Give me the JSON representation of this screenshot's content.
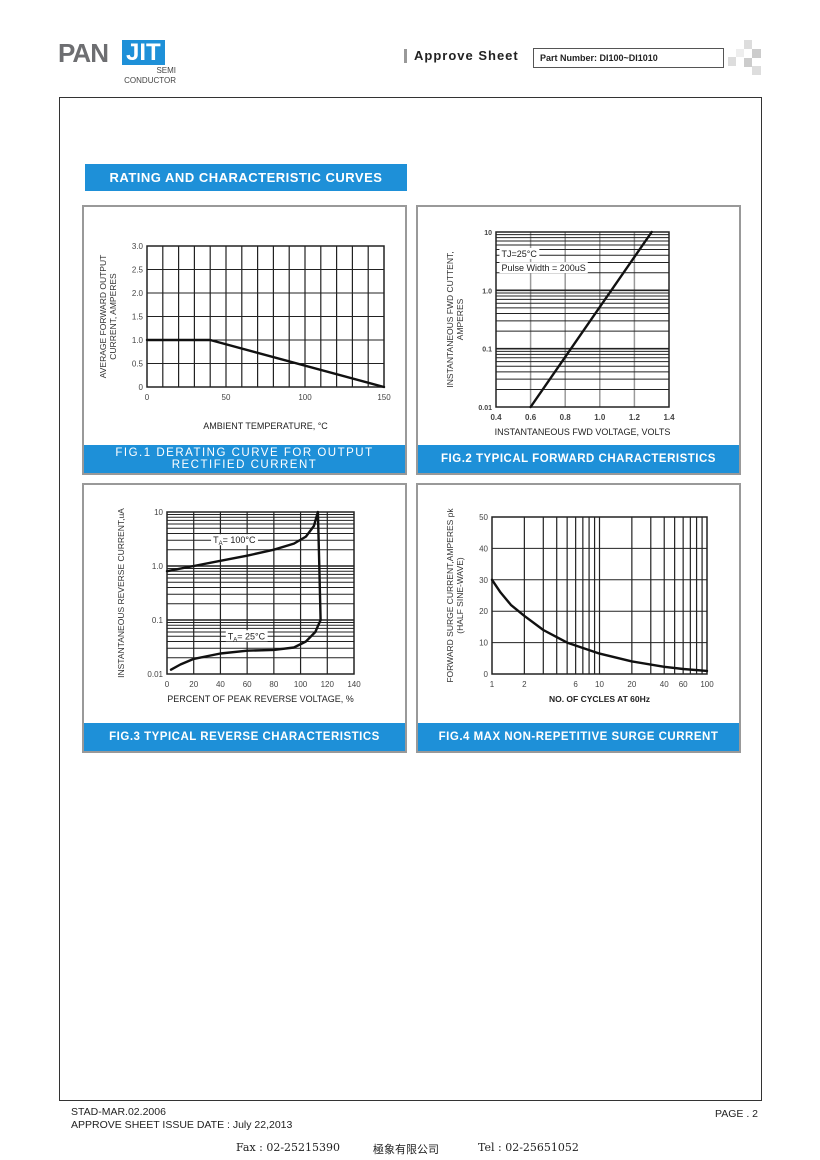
{
  "header": {
    "logo": {
      "left": "PAN",
      "right": "JIT",
      "sub1": "SEMI",
      "sub2": "CONDUCTOR"
    },
    "title": "Approve Sheet",
    "part_number": "Part Number: DI100~DI1010"
  },
  "section_title": "RATING AND CHARACTERISTIC CURVES",
  "colors": {
    "accent": "#1e90d8",
    "grid": "#222222",
    "grid_light": "#9a9a9a"
  },
  "chart_data": [
    {
      "type": "line",
      "caption": "FIG.1 DERATING CURVE FOR OUTPUT RECTIFIED CURRENT",
      "xlabel": "AMBIENT TEMPERATURE, °C",
      "ylabel": [
        "AVERAGE FORWARD OUTPUT",
        "CURRENT, AMPERES"
      ],
      "xscale": "linear",
      "yscale": "linear",
      "xlim": [
        0,
        150
      ],
      "ylim": [
        0,
        3
      ],
      "xgrid": [
        10,
        20,
        30,
        40,
        50,
        60,
        70,
        80,
        90,
        100,
        110,
        120,
        130,
        140
      ],
      "ygrid": [
        0.5,
        1.0,
        1.5,
        2.0,
        2.5
      ],
      "xticks": [
        {
          "v": 0,
          "t": "0"
        },
        {
          "v": 50,
          "t": "50"
        },
        {
          "v": 100,
          "t": "100"
        },
        {
          "v": 150,
          "t": "150"
        }
      ],
      "yticks": [
        {
          "v": 0,
          "t": "0"
        },
        {
          "v": 0.5,
          "t": "0.5"
        },
        {
          "v": 1.0,
          "t": "1.0"
        },
        {
          "v": 1.5,
          "t": "1.5"
        },
        {
          "v": 2.0,
          "t": "2.0"
        },
        {
          "v": 2.5,
          "t": "2.5"
        },
        {
          "v": 3.0,
          "t": "3.0"
        }
      ],
      "series": [
        {
          "name": "derating",
          "points": [
            [
              0,
              1.0
            ],
            [
              40,
              1.0
            ],
            [
              150,
              0
            ]
          ]
        }
      ],
      "annotations": []
    },
    {
      "type": "line",
      "caption": "FIG.2 TYPICAL FORWARD CHARACTERISTICS",
      "xlabel": "INSTANTANEOUS FWD VOLTAGE, VOLTS",
      "ylabel": [
        "INSTANTANEOUS FWD CUTTENT,",
        "AMPERES"
      ],
      "xscale": "linear",
      "yscale": "log",
      "xlim": [
        0.4,
        1.4
      ],
      "ylim": [
        0.01,
        10
      ],
      "xgrid": [
        0.6,
        0.8,
        1.0,
        1.2
      ],
      "ygrid": "log-minor",
      "xticks": [
        {
          "v": 0.4,
          "t": "0.4"
        },
        {
          "v": 0.6,
          "t": "0.6"
        },
        {
          "v": 0.8,
          "t": "0.8"
        },
        {
          "v": 1.0,
          "t": "1.0"
        },
        {
          "v": 1.2,
          "t": "1.2"
        },
        {
          "v": 1.4,
          "t": "1.4"
        }
      ],
      "yticks": [
        {
          "v": 0.01,
          "t": "0.01"
        },
        {
          "v": 0.1,
          "t": "0.1"
        },
        {
          "v": 1,
          "t": "1.0"
        },
        {
          "v": 10,
          "t": "10"
        }
      ],
      "series": [
        {
          "name": "TJ=25°C",
          "points": [
            [
              0.6,
              0.01
            ],
            [
              1.3,
              10
            ]
          ]
        }
      ],
      "annotations": [
        {
          "x": 0.42,
          "y": 4.2,
          "parts": [
            "TJ=25°C"
          ]
        },
        {
          "x": 0.42,
          "y": 2.4,
          "parts": [
            "Pulse Width = 200uS"
          ]
        }
      ]
    },
    {
      "type": "line",
      "caption": "FIG.3 TYPICAL REVERSE CHARACTERISTICS",
      "xlabel": "PERCENT OF PEAK REVERSE VOLTAGE, %",
      "ylabel": [
        "INSTANTANEOUS REVERSE CURRENT,uA"
      ],
      "xscale": "linear",
      "yscale": "log",
      "xlim": [
        0,
        140
      ],
      "ylim": [
        0.01,
        10
      ],
      "xgrid": [
        20,
        40,
        60,
        80,
        100,
        120
      ],
      "ygrid": "log-minor",
      "xticks": [
        {
          "v": 0,
          "t": "0"
        },
        {
          "v": 20,
          "t": "20"
        },
        {
          "v": 40,
          "t": "40"
        },
        {
          "v": 60,
          "t": "60"
        },
        {
          "v": 80,
          "t": "80"
        },
        {
          "v": 100,
          "t": "100"
        },
        {
          "v": 120,
          "t": "120"
        },
        {
          "v": 140,
          "t": "140"
        }
      ],
      "yticks": [
        {
          "v": 0.01,
          "t": "0.01"
        },
        {
          "v": 0.1,
          "t": "0.1"
        },
        {
          "v": 1,
          "t": "1.0"
        },
        {
          "v": 10,
          "t": "10"
        }
      ],
      "series": [
        {
          "name": "TA=100°C",
          "points": [
            [
              0,
              0.8
            ],
            [
              20,
              1.0
            ],
            [
              40,
              1.25
            ],
            [
              60,
              1.55
            ],
            [
              80,
              2.0
            ],
            [
              95,
              2.6
            ],
            [
              104,
              3.5
            ],
            [
              110,
              5.5
            ],
            [
              113,
              10
            ],
            [
              114,
              1
            ],
            [
              115,
              0.1
            ]
          ]
        },
        {
          "name": "TA=25°C",
          "points": [
            [
              3,
              0.012
            ],
            [
              10,
              0.015
            ],
            [
              20,
              0.019
            ],
            [
              40,
              0.024
            ],
            [
              60,
              0.027
            ],
            [
              80,
              0.028
            ],
            [
              95,
              0.031
            ],
            [
              104,
              0.04
            ],
            [
              111,
              0.06
            ],
            [
              115,
              0.1
            ]
          ]
        }
      ],
      "annotations": [
        {
          "x": 33,
          "y": 3.0,
          "parts": [
            "T",
            "A",
            "= 100°C"
          ]
        },
        {
          "x": 44,
          "y": 0.05,
          "parts": [
            "T",
            "A",
            "= 25°C"
          ]
        }
      ]
    },
    {
      "type": "line",
      "caption": "FIG.4 MAX NON-REPETITIVE SURGE CURRENT",
      "xlabel": "NO. OF CYCLES AT 60Hz",
      "ylabel": [
        "FORWARD SURGE CURRENT,AMPERES pk",
        "(HALF SINE-WAVE)"
      ],
      "xscale": "log",
      "yscale": "linear",
      "xlim": [
        1,
        100
      ],
      "ylim": [
        0,
        50
      ],
      "xgrid": "log-minor",
      "ygrid": [
        10,
        20,
        30,
        40
      ],
      "xticks": [
        {
          "v": 1,
          "t": "1"
        },
        {
          "v": 2,
          "t": "2"
        },
        {
          "v": 6,
          "t": "6"
        },
        {
          "v": 10,
          "t": "10"
        },
        {
          "v": 20,
          "t": "20"
        },
        {
          "v": 40,
          "t": "40"
        },
        {
          "v": 60,
          "t": "60"
        },
        {
          "v": 100,
          "t": "100"
        }
      ],
      "yticks": [
        {
          "v": 0,
          "t": "0"
        },
        {
          "v": 10,
          "t": "10"
        },
        {
          "v": 20,
          "t": "20"
        },
        {
          "v": 30,
          "t": "30"
        },
        {
          "v": 40,
          "t": "40"
        },
        {
          "v": 50,
          "t": "50"
        }
      ],
      "series": [
        {
          "name": "surge",
          "points": [
            [
              1,
              30
            ],
            [
              1.2,
              26
            ],
            [
              1.5,
              22
            ],
            [
              2,
              18.5
            ],
            [
              3,
              14
            ],
            [
              5,
              10
            ],
            [
              10,
              6.5
            ],
            [
              20,
              4
            ],
            [
              40,
              2.3
            ],
            [
              60,
              1.6
            ],
            [
              100,
              1
            ]
          ]
        }
      ],
      "annotations": []
    }
  ],
  "footer": {
    "doc_code": "STAD-MAR.02.2006",
    "issue_date": "APPROVE SHEET ISSUE DATE : July 22,2013",
    "page": "PAGE . 2",
    "fax": "Fax : 02-25215390",
    "company": "極象有限公司",
    "tel": "Tel : 02-25651052"
  }
}
